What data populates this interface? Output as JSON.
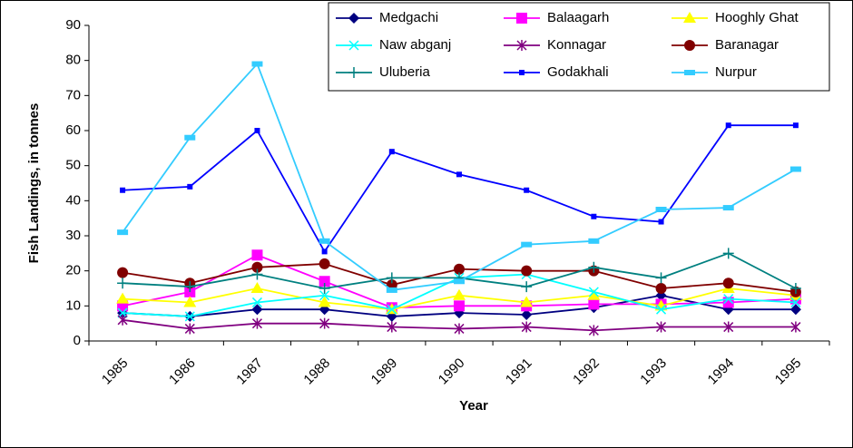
{
  "chart_data": {
    "type": "line",
    "x_label": "Year",
    "y_label": "Fish Landings, in tonnes",
    "categories": [
      "1985",
      "1986",
      "1987",
      "1988",
      "1989",
      "1990",
      "1991",
      "1992",
      "1993",
      "1994",
      "1995"
    ],
    "ylim": [
      0,
      90
    ],
    "yticks": [
      0,
      10,
      20,
      30,
      40,
      50,
      60,
      70,
      80,
      90
    ],
    "series": [
      {
        "name": "Medgachi",
        "color": "#000080",
        "marker": "diamond",
        "values": [
          8,
          7,
          9,
          9,
          7,
          8,
          7.5,
          9.5,
          13,
          9,
          9
        ]
      },
      {
        "name": "Balaagarh",
        "color": "#ff00ff",
        "marker": "square",
        "values": [
          10,
          14,
          24.5,
          17,
          9.5,
          10,
          10,
          10.5,
          10.5,
          11,
          12
        ]
      },
      {
        "name": "Hooghly Ghat",
        "color": "#ffff00",
        "marker": "triangle",
        "values": [
          12,
          11,
          15,
          11,
          9,
          13,
          11,
          13,
          10,
          15,
          13
        ]
      },
      {
        "name": "Naw abganj",
        "color": "#00ffff",
        "marker": "x",
        "values": [
          8,
          7,
          11,
          13,
          9,
          18,
          19,
          14,
          9,
          12,
          11
        ]
      },
      {
        "name": "Konnagar",
        "color": "#800080",
        "marker": "star",
        "values": [
          6,
          3.5,
          5,
          5,
          4,
          3.5,
          4,
          3,
          4,
          4,
          4
        ]
      },
      {
        "name": "Baranagar",
        "color": "#800000",
        "marker": "circle",
        "values": [
          19.5,
          16.5,
          21,
          22,
          16,
          20.5,
          20,
          20,
          15,
          16.5,
          14
        ]
      },
      {
        "name": "Uluberia",
        "color": "#008080",
        "marker": "plus",
        "values": [
          16.5,
          15.5,
          19,
          15,
          18,
          18,
          15.5,
          21,
          18,
          25,
          15
        ]
      },
      {
        "name": "Godakhali",
        "color": "#0000ff",
        "marker": "smallsquare",
        "values": [
          43,
          44,
          60,
          25.5,
          54,
          47.5,
          43,
          35.5,
          34,
          61.5,
          61.5
        ]
      },
      {
        "name": "Nurpur",
        "color": "#33ccff",
        "marker": "rect",
        "values": [
          31,
          58,
          79,
          28.5,
          14.5,
          17,
          27.5,
          28.5,
          37.5,
          38,
          49
        ]
      }
    ]
  }
}
